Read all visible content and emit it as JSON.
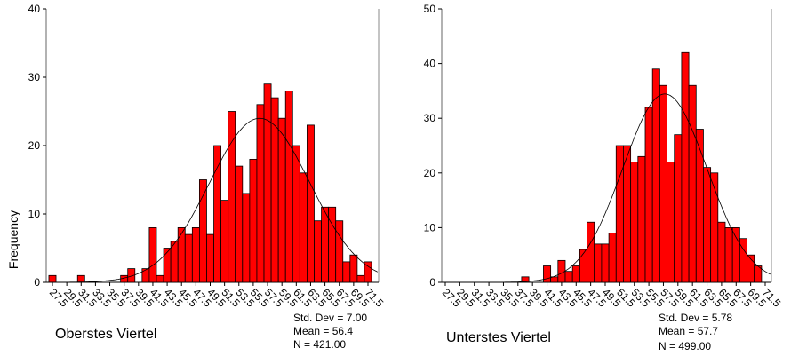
{
  "chart_data": [
    {
      "type": "bar",
      "title": "Oberstes Viertel",
      "ylabel": "Frequency",
      "xlabel": "",
      "ylim": [
        0,
        40
      ],
      "yticks": [
        0,
        10,
        20,
        30,
        40
      ],
      "xtick_labels": [
        "27.5",
        "29.5",
        "31.5",
        "33.5",
        "35.5",
        "37.5",
        "39.5",
        "41.5",
        "43.5",
        "45.5",
        "47.5",
        "49.5",
        "51.5",
        "53.5",
        "55.5",
        "57.5",
        "59.5",
        "61.5",
        "63.5",
        "65.5",
        "67.5",
        "69.5",
        "71.5"
      ],
      "bin_width": 1,
      "bins": [
        {
          "x": 27.5,
          "y": 1
        },
        {
          "x": 31.5,
          "y": 1
        },
        {
          "x": 37.5,
          "y": 1
        },
        {
          "x": 38.5,
          "y": 2
        },
        {
          "x": 40.5,
          "y": 2
        },
        {
          "x": 41.5,
          "y": 8
        },
        {
          "x": 42.5,
          "y": 1
        },
        {
          "x": 43.5,
          "y": 5
        },
        {
          "x": 44.5,
          "y": 6
        },
        {
          "x": 45.5,
          "y": 8
        },
        {
          "x": 46.5,
          "y": 7
        },
        {
          "x": 47.5,
          "y": 8
        },
        {
          "x": 48.5,
          "y": 15
        },
        {
          "x": 49.5,
          "y": 7
        },
        {
          "x": 50.5,
          "y": 20
        },
        {
          "x": 51.5,
          "y": 12
        },
        {
          "x": 52.5,
          "y": 25
        },
        {
          "x": 53.5,
          "y": 17
        },
        {
          "x": 54.5,
          "y": 13
        },
        {
          "x": 55.5,
          "y": 18
        },
        {
          "x": 56.5,
          "y": 26
        },
        {
          "x": 57.5,
          "y": 29
        },
        {
          "x": 58.5,
          "y": 27
        },
        {
          "x": 59.5,
          "y": 24
        },
        {
          "x": 60.5,
          "y": 28
        },
        {
          "x": 61.5,
          "y": 20
        },
        {
          "x": 62.5,
          "y": 16
        },
        {
          "x": 63.5,
          "y": 23
        },
        {
          "x": 64.5,
          "y": 9
        },
        {
          "x": 65.5,
          "y": 11
        },
        {
          "x": 66.5,
          "y": 11
        },
        {
          "x": 67.5,
          "y": 9
        },
        {
          "x": 68.5,
          "y": 3
        },
        {
          "x": 69.5,
          "y": 4
        },
        {
          "x": 70.5,
          "y": 1
        },
        {
          "x": 71.5,
          "y": 3
        }
      ],
      "normal_curve": {
        "mean": 56.4,
        "std": 7.0,
        "n": 421
      },
      "stats": {
        "std_dev": "Std. Dev = 7.00",
        "mean": "Mean = 56.4",
        "n": "N = 421.00"
      },
      "bar_color": "#ff0000"
    },
    {
      "type": "bar",
      "title": "Unterstes Viertel",
      "ylabel": "",
      "xlabel": "",
      "ylim": [
        0,
        50
      ],
      "yticks": [
        0,
        10,
        20,
        30,
        40,
        50
      ],
      "xtick_labels": [
        "27.5",
        "29.5",
        "31.5",
        "33.5",
        "35.5",
        "37.5",
        "39.5",
        "41.5",
        "43.5",
        "45.5",
        "47.5",
        "49.5",
        "51.5",
        "53.5",
        "55.5",
        "57.5",
        "59.5",
        "61.5",
        "63.5",
        "65.5",
        "67.5",
        "69.5",
        "71.5"
      ],
      "bin_width": 1,
      "bins": [
        {
          "x": 38.5,
          "y": 1
        },
        {
          "x": 41.5,
          "y": 3
        },
        {
          "x": 42.5,
          "y": 1
        },
        {
          "x": 43.5,
          "y": 4
        },
        {
          "x": 44.5,
          "y": 2
        },
        {
          "x": 45.5,
          "y": 3
        },
        {
          "x": 46.5,
          "y": 6
        },
        {
          "x": 47.5,
          "y": 11
        },
        {
          "x": 48.5,
          "y": 7
        },
        {
          "x": 49.5,
          "y": 7
        },
        {
          "x": 50.5,
          "y": 9
        },
        {
          "x": 51.5,
          "y": 25
        },
        {
          "x": 52.5,
          "y": 25
        },
        {
          "x": 53.5,
          "y": 22
        },
        {
          "x": 54.5,
          "y": 23
        },
        {
          "x": 55.5,
          "y": 32
        },
        {
          "x": 56.5,
          "y": 39
        },
        {
          "x": 57.5,
          "y": 36
        },
        {
          "x": 58.5,
          "y": 22
        },
        {
          "x": 59.5,
          "y": 27
        },
        {
          "x": 60.5,
          "y": 42
        },
        {
          "x": 61.5,
          "y": 36
        },
        {
          "x": 62.5,
          "y": 28
        },
        {
          "x": 63.5,
          "y": 21
        },
        {
          "x": 64.5,
          "y": 20
        },
        {
          "x": 65.5,
          "y": 11
        },
        {
          "x": 66.5,
          "y": 10
        },
        {
          "x": 67.5,
          "y": 10
        },
        {
          "x": 68.5,
          "y": 8
        },
        {
          "x": 69.5,
          "y": 5
        },
        {
          "x": 70.5,
          "y": 3
        }
      ],
      "normal_curve": {
        "mean": 57.7,
        "std": 5.78,
        "n": 499
      },
      "stats": {
        "std_dev": "Std. Dev = 5.78",
        "mean": "Mean = 57.7",
        "n": "N = 499.00"
      },
      "bar_color": "#ff0000"
    }
  ]
}
